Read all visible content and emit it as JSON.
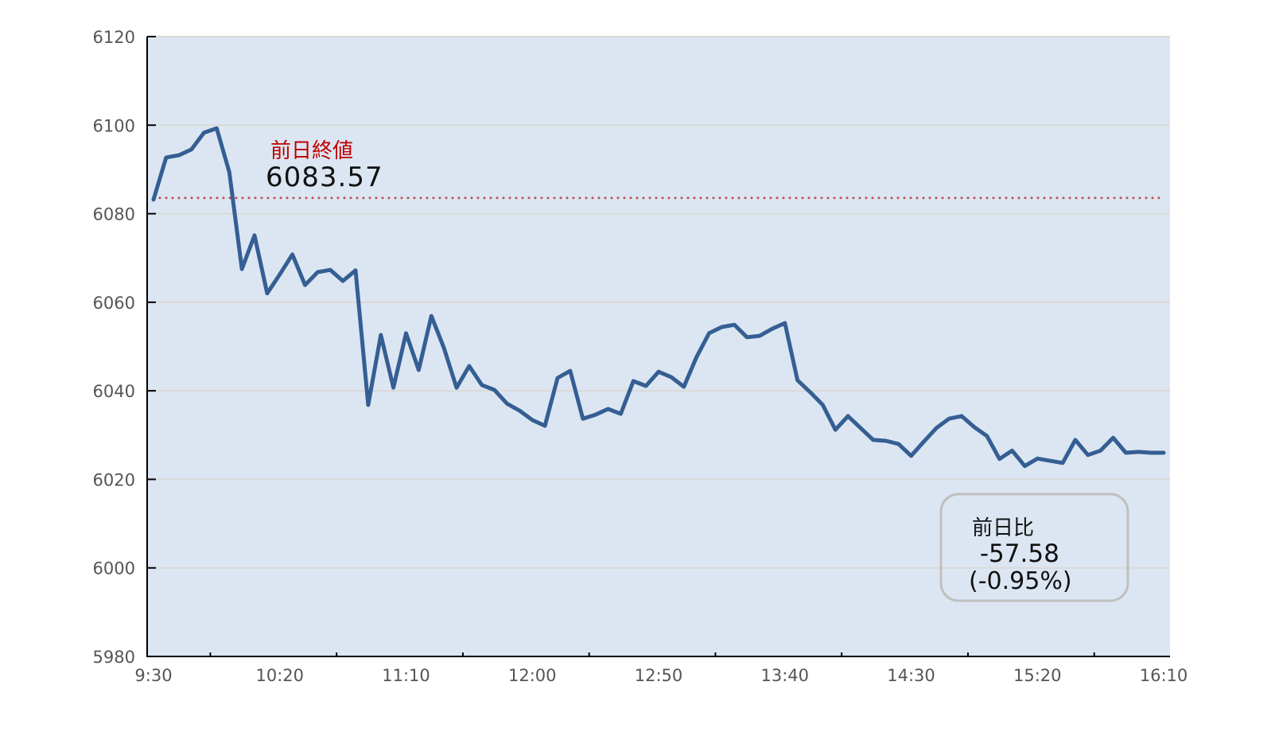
{
  "chart_data": {
    "type": "line",
    "title": "",
    "xlabel": "",
    "ylabel": "",
    "ylim": [
      5980,
      6120
    ],
    "y_ticks": [
      "5980",
      "6000",
      "6020",
      "6040",
      "6060",
      "6080",
      "6100",
      "6120"
    ],
    "x_tick_labels": [
      "9:30",
      "10:20",
      "11:10",
      "12:00",
      "12:50",
      "13:40",
      "14:30",
      "15:20",
      "16:10"
    ],
    "grid": "horizontal",
    "x_interval_minutes": 5,
    "x_start": "9:30",
    "x_end": "16:10",
    "values": [
      6083.2,
      6092.7,
      6093.2,
      6094.5,
      6098.3,
      6099.3,
      6089.4,
      6067.5,
      6075.1,
      6062.0,
      6066.3,
      6070.8,
      6063.9,
      6066.8,
      6067.3,
      6064.8,
      6067.2,
      6036.8,
      6052.6,
      6040.7,
      6053.0,
      6044.7,
      6056.9,
      6049.7,
      6040.7,
      6045.6,
      6041.3,
      6040.2,
      6037.1,
      6035.5,
      6033.4,
      6032.1,
      6042.9,
      6044.5,
      6033.7,
      6034.6,
      6035.9,
      6034.8,
      6042.2,
      6041.1,
      6044.3,
      6043.1,
      6040.9,
      6047.6,
      6053.0,
      6054.4,
      6054.9,
      6052.1,
      6052.4,
      6054.0,
      6055.3,
      6042.4,
      6039.7,
      6036.8,
      6031.2,
      6034.3,
      6031.6,
      6028.9,
      6028.7,
      6028.0,
      6025.3,
      6028.5,
      6031.6,
      6033.7,
      6034.3,
      6031.8,
      6029.8,
      6024.6,
      6026.5,
      6023.0,
      6024.7,
      6024.2,
      6023.7,
      6028.9,
      6025.5,
      6026.5,
      6029.4,
      6026.0,
      6026.2,
      6026.0,
      6026.0
    ],
    "reference_line": {
      "value": 6083.57,
      "label": "前日終値",
      "value_label": "6083.57",
      "style": "dotted"
    },
    "change_box": {
      "label": "前日比",
      "change": " -57.58",
      "percent": "(-0.95%)"
    },
    "colors": {
      "line": "#355f93",
      "plot_bg": "#dce6f2",
      "reference": "#c0504d",
      "reference_label": "#c00000",
      "grid": "#d9d9d9"
    }
  }
}
